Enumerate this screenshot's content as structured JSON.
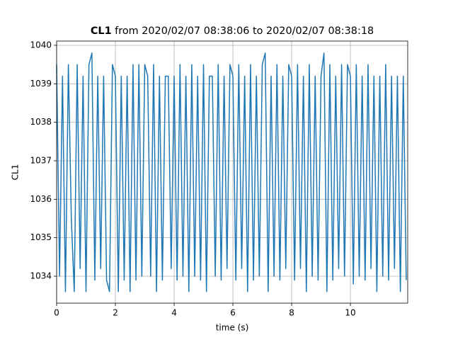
{
  "chart_data": {
    "type": "line",
    "title": {
      "bold": "CL1",
      "rest": "from 2020/02/07 08:38:06 to 2020/02/07 08:38:18"
    },
    "x_label": "time (s)",
    "y_label": "CL1",
    "x": [
      0,
      0.1,
      0.2,
      0.3,
      0.4,
      0.5,
      0.6,
      0.7,
      0.8,
      0.9,
      1,
      1.1,
      1.2,
      1.3,
      1.4,
      1.5,
      1.6,
      1.7,
      1.8,
      1.9,
      2,
      2.1,
      2.2,
      2.3,
      2.4,
      2.5,
      2.6,
      2.7,
      2.8,
      2.9,
      3,
      3.1,
      3.2,
      3.3,
      3.4,
      3.5,
      3.6,
      3.7,
      3.8,
      3.9,
      4,
      4.1,
      4.2,
      4.3,
      4.4,
      4.5,
      4.6,
      4.7,
      4.8,
      4.9,
      5,
      5.1,
      5.2,
      5.3,
      5.4,
      5.5,
      5.6,
      5.7,
      5.8,
      5.9,
      6,
      6.1,
      6.2,
      6.3,
      6.4,
      6.5,
      6.6,
      6.7,
      6.8,
      6.9,
      7,
      7.1,
      7.2,
      7.3,
      7.4,
      7.5,
      7.6,
      7.7,
      7.8,
      7.9,
      8,
      8.1,
      8.2,
      8.3,
      8.4,
      8.5,
      8.6,
      8.7,
      8.8,
      8.9,
      9,
      9.1,
      9.2,
      9.3,
      9.4,
      9.5,
      9.6,
      9.7,
      9.8,
      9.9,
      10,
      10.1,
      10.2,
      10.3,
      10.4,
      10.5,
      10.6,
      10.7,
      10.8,
      10.9,
      11,
      11.1,
      11.2,
      11.3,
      11.4,
      11.5,
      11.6,
      11.7,
      11.8,
      11.9
    ],
    "series": [
      {
        "name": "CL1",
        "color": "#1f77b4",
        "values": [
          1039.5,
          1034.0,
          1039.2,
          1033.6,
          1039.5,
          1035.5,
          1033.6,
          1039.5,
          1034.2,
          1039.2,
          1033.6,
          1039.5,
          1039.8,
          1033.9,
          1039.2,
          1034.2,
          1039.2,
          1033.9,
          1033.6,
          1039.5,
          1039.2,
          1033.6,
          1039.2,
          1033.9,
          1039.2,
          1033.6,
          1039.5,
          1033.9,
          1039.5,
          1034.0,
          1039.5,
          1039.2,
          1034.0,
          1039.5,
          1033.6,
          1039.2,
          1033.9,
          1039.2,
          1039.2,
          1034.2,
          1039.2,
          1033.9,
          1039.5,
          1034.0,
          1039.2,
          1033.6,
          1039.5,
          1034.0,
          1039.2,
          1033.9,
          1039.5,
          1033.6,
          1039.2,
          1039.2,
          1034.0,
          1039.5,
          1033.9,
          1039.2,
          1034.2,
          1039.5,
          1039.2,
          1033.9,
          1039.5,
          1034.2,
          1039.2,
          1033.6,
          1039.5,
          1033.9,
          1039.2,
          1034.0,
          1039.5,
          1039.8,
          1033.6,
          1039.2,
          1034.0,
          1039.5,
          1033.9,
          1039.2,
          1034.2,
          1039.5,
          1039.2,
          1033.9,
          1039.5,
          1034.2,
          1039.2,
          1033.6,
          1039.5,
          1034.0,
          1039.2,
          1033.9,
          1039.2,
          1039.8,
          1033.6,
          1039.5,
          1033.9,
          1039.2,
          1034.2,
          1039.5,
          1034.0,
          1039.5,
          1039.2,
          1033.8,
          1039.5,
          1034.0,
          1039.2,
          1033.9,
          1039.5,
          1034.2,
          1039.2,
          1033.6,
          1039.2,
          1034.0,
          1039.5,
          1033.9,
          1039.2,
          1034.2,
          1039.2,
          1033.6,
          1039.2,
          1033.9
        ]
      }
    ],
    "xlim": [
      0,
      11.95
    ],
    "ylim": [
      1033.3,
      1040.11
    ],
    "xticks": [
      0,
      2,
      4,
      6,
      8,
      10
    ],
    "yticks": [
      1034,
      1035,
      1036,
      1037,
      1038,
      1039,
      1040
    ],
    "grid": true
  }
}
